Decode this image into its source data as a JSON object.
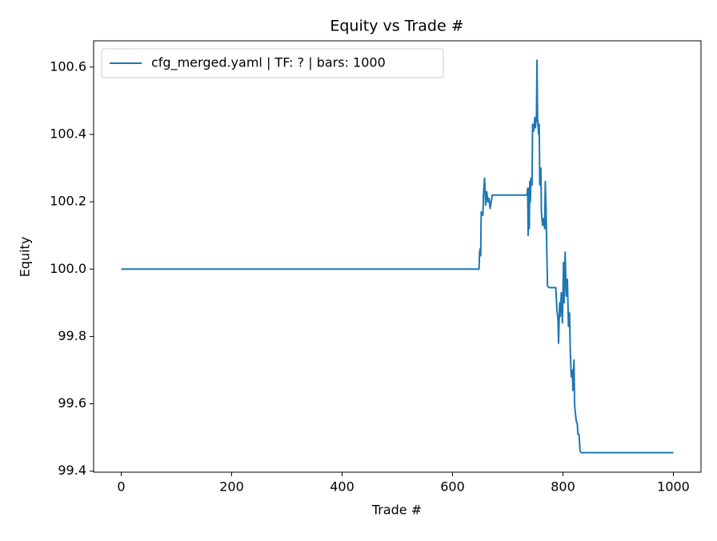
{
  "chart_data": {
    "type": "line",
    "title": "Equity vs Trade #",
    "xlabel": "Trade #",
    "ylabel": "Equity",
    "xlim": [
      -50,
      1050
    ],
    "ylim": [
      99.397,
      100.678
    ],
    "xticks": [
      0,
      200,
      400,
      600,
      800,
      1000
    ],
    "yticks": [
      99.4,
      99.6,
      99.8,
      {
        "value": 100,
        "label": "100.0"
      },
      100.2,
      100.4,
      100.6
    ],
    "legend": "upper left",
    "series": [
      {
        "name": "cfg_merged.yaml | TF: ? | bars: 1000",
        "color": "#1f77b4",
        "x": [
          0,
          648,
          649,
          650,
          651,
          652,
          655,
          656,
          658,
          660,
          662,
          664,
          666,
          668,
          670,
          672,
          735,
          736,
          737,
          738,
          739,
          740,
          741,
          742,
          744,
          745,
          747,
          749,
          750,
          752,
          753,
          754,
          756,
          757,
          758,
          760,
          761,
          763,
          765,
          767,
          768,
          769,
          770,
          772,
          775,
          787,
          789,
          791,
          792,
          794,
          795,
          797,
          799,
          801,
          802,
          804,
          806,
          808,
          810,
          812,
          813,
          815,
          817,
          818,
          820,
          821,
          822,
          824,
          826,
          827,
          829,
          831,
          833,
          1000
        ],
        "values": [
          100,
          100,
          100.05,
          100.06,
          100.04,
          100.17,
          100.16,
          100.22,
          100.27,
          100.19,
          100.23,
          100.2,
          100.21,
          100.18,
          100.2,
          100.22,
          100.22,
          100.24,
          100.1,
          100.24,
          100.12,
          100.26,
          100.2,
          100.27,
          100.25,
          100.43,
          100.41,
          100.45,
          100.42,
          100.45,
          100.62,
          100.45,
          100.4,
          100.43,
          100.25,
          100.3,
          100.17,
          100.13,
          100.15,
          100.12,
          100.26,
          100.2,
          100.12,
          99.95,
          99.945,
          99.945,
          99.88,
          99.85,
          99.78,
          99.9,
          99.86,
          99.93,
          99.84,
          100.02,
          99.9,
          100.05,
          99.92,
          99.97,
          99.83,
          99.87,
          99.77,
          99.68,
          99.7,
          99.64,
          99.73,
          99.6,
          99.58,
          99.55,
          99.54,
          99.51,
          99.51,
          99.46,
          99.455,
          99.455
        ]
      }
    ]
  }
}
